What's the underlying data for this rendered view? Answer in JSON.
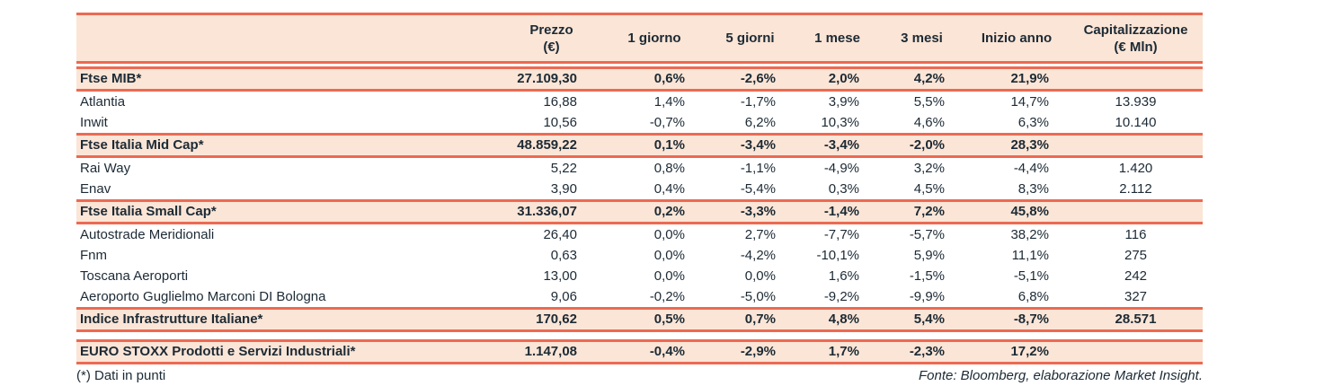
{
  "table": {
    "columns": [
      {
        "label": "",
        "sub": ""
      },
      {
        "label": "Prezzo",
        "sub": "(€)"
      },
      {
        "label": "1 giorno",
        "sub": ""
      },
      {
        "label": "5 giorni",
        "sub": ""
      },
      {
        "label": "1 mese",
        "sub": ""
      },
      {
        "label": "3 mesi",
        "sub": ""
      },
      {
        "label": "Inizio anno",
        "sub": ""
      },
      {
        "label": "Capitalizzazione",
        "sub": "(€ Mln)"
      }
    ],
    "rows": [
      {
        "type": "index-first",
        "name": "Ftse MIB*",
        "values": [
          "27.109,30",
          "0,6%",
          "-2,6%",
          "2,0%",
          "4,2%",
          "21,9%",
          ""
        ]
      },
      {
        "type": "stock",
        "name": "Atlantia",
        "values": [
          "16,88",
          "1,4%",
          "-1,7%",
          "3,9%",
          "5,5%",
          "14,7%",
          "13.939"
        ]
      },
      {
        "type": "stock",
        "name": "Inwit",
        "values": [
          "10,56",
          "-0,7%",
          "6,2%",
          "10,3%",
          "4,6%",
          "6,3%",
          "10.140"
        ]
      },
      {
        "type": "index",
        "name": "Ftse Italia Mid Cap*",
        "values": [
          "48.859,22",
          "0,1%",
          "-3,4%",
          "-3,4%",
          "-2,0%",
          "28,3%",
          ""
        ]
      },
      {
        "type": "stock",
        "name": "Rai Way",
        "values": [
          "5,22",
          "0,8%",
          "-1,1%",
          "-4,9%",
          "3,2%",
          "-4,4%",
          "1.420"
        ]
      },
      {
        "type": "stock",
        "name": "Enav",
        "values": [
          "3,90",
          "0,4%",
          "-5,4%",
          "0,3%",
          "4,5%",
          "8,3%",
          "2.112"
        ]
      },
      {
        "type": "index",
        "name": "Ftse Italia Small Cap*",
        "values": [
          "31.336,07",
          "0,2%",
          "-3,3%",
          "-1,4%",
          "7,2%",
          "45,8%",
          ""
        ]
      },
      {
        "type": "stock",
        "name": "Autostrade Meridionali",
        "values": [
          "26,40",
          "0,0%",
          "2,7%",
          "-7,7%",
          "-5,7%",
          "38,2%",
          "116"
        ]
      },
      {
        "type": "stock",
        "name": "Fnm",
        "values": [
          "0,63",
          "0,0%",
          "-4,2%",
          "-10,1%",
          "5,9%",
          "11,1%",
          "275"
        ]
      },
      {
        "type": "stock",
        "name": "Toscana Aeroporti",
        "values": [
          "13,00",
          "0,0%",
          "0,0%",
          "1,6%",
          "-1,5%",
          "-5,1%",
          "242"
        ]
      },
      {
        "type": "stock",
        "name": "Aeroporto Guglielmo Marconi DI Bologna",
        "values": [
          "9,06",
          "-0,2%",
          "-5,0%",
          "-9,2%",
          "-9,9%",
          "6,8%",
          "327"
        ]
      },
      {
        "type": "index",
        "name": "Indice Infrastrutture Italiane*",
        "values": [
          "170,62",
          "0,5%",
          "0,7%",
          "4,8%",
          "5,4%",
          "-8,7%",
          "28.571"
        ]
      },
      {
        "type": "index-separate",
        "name": "EURO STOXX Prodotti e Servizi Industriali*",
        "values": [
          "1.147,08",
          "-0,4%",
          "-2,9%",
          "1,7%",
          "-2,3%",
          "17,2%",
          ""
        ]
      }
    ]
  },
  "footer": {
    "note": "(*) Dati in punti",
    "source": "Fonte: Bloomberg, elaborazione Market Insight."
  },
  "colors": {
    "accent_line": "#ec6a52",
    "row_highlight": "#fbe5d6",
    "text": "#1c2a35"
  }
}
